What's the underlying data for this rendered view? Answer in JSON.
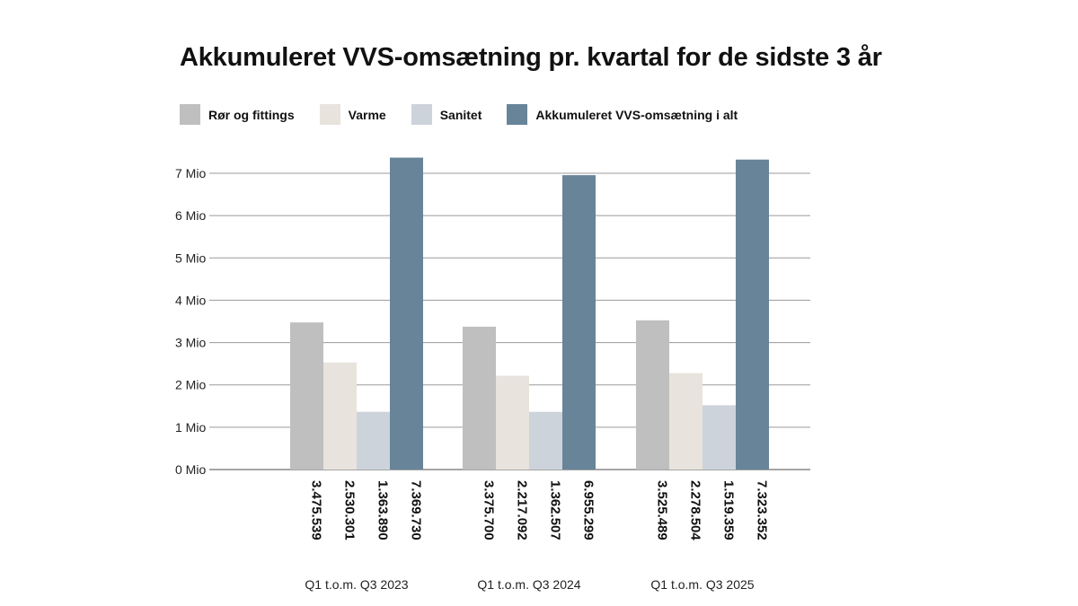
{
  "chart_data": {
    "type": "bar",
    "title": "Akkumuleret VVS-omsætning pr. kvartal for de sidste 3 år",
    "categories": [
      "Q1 t.o.m. Q3 2023",
      "Q1 t.o.m. Q3 2024",
      "Q1 t.o.m. Q3 2025"
    ],
    "series": [
      {
        "name": "Rør og fittings",
        "color": "#bfbfbf",
        "values": [
          3475539,
          3375700,
          3525489
        ],
        "labels": [
          "3.475.539",
          "3.375.700",
          "3.525.489"
        ]
      },
      {
        "name": "Varme",
        "color": "#e8e3dd",
        "values": [
          2530301,
          2217092,
          2278504
        ],
        "labels": [
          "2.530.301",
          "2.217.092",
          "2.278.504"
        ]
      },
      {
        "name": "Sanitet",
        "color": "#cdd3da",
        "values": [
          1363890,
          1362507,
          1519359
        ],
        "labels": [
          "1.363.890",
          "1.362.507",
          "1.519.359"
        ]
      },
      {
        "name": "Akkumuleret VVS-omsætning i alt",
        "color": "#688499",
        "values": [
          7369730,
          6955299,
          7323352
        ],
        "labels": [
          "7.369.730",
          "6.955.299",
          "7.323.352"
        ]
      }
    ],
    "yticks": [
      {
        "value": 0,
        "label": "0 Mio"
      },
      {
        "value": 1000000,
        "label": "1 Mio"
      },
      {
        "value": 2000000,
        "label": "2 Mio"
      },
      {
        "value": 3000000,
        "label": "3 Mio"
      },
      {
        "value": 4000000,
        "label": "4 Mio"
      },
      {
        "value": 5000000,
        "label": "5 Mio"
      },
      {
        "value": 6000000,
        "label": "6 Mio"
      },
      {
        "value": 7000000,
        "label": "7 Mio"
      }
    ],
    "ylim": [
      0,
      7000000
    ],
    "grid": true,
    "legend_position": "top-left"
  }
}
